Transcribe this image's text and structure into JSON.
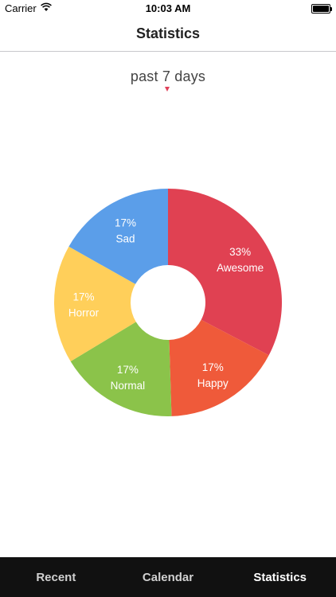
{
  "status_bar": {
    "carrier": "Carrier",
    "time": "10:03 AM",
    "battery_level": 1.0
  },
  "nav": {
    "title": "Statistics"
  },
  "period": {
    "label": "past 7 days",
    "caret_color": "#e0415a"
  },
  "chart_data": {
    "type": "pie",
    "donut": true,
    "title": "",
    "slices": [
      {
        "label": "Awesome",
        "percent_label": "33%",
        "value": 33,
        "color": "#e04152"
      },
      {
        "label": "Happy",
        "percent_label": "17%",
        "value": 17,
        "color": "#ef5a3a"
      },
      {
        "label": "Normal",
        "percent_label": "17%",
        "value": 17,
        "color": "#8bc34a"
      },
      {
        "label": "Horror",
        "percent_label": "17%",
        "value": 17,
        "color": "#ffcf5a"
      },
      {
        "label": "Sad",
        "percent_label": "17%",
        "value": 17,
        "color": "#5b9ee9"
      }
    ]
  },
  "tabs": [
    {
      "label": "Recent",
      "active": false
    },
    {
      "label": "Calendar",
      "active": false
    },
    {
      "label": "Statistics",
      "active": true
    }
  ]
}
